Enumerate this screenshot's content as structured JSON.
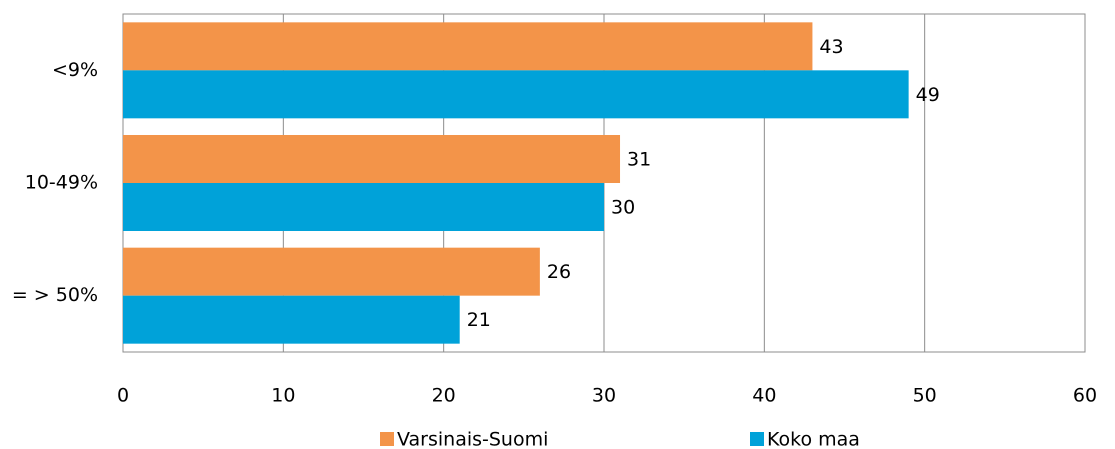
{
  "chart_data": {
    "type": "bar",
    "orientation": "horizontal",
    "categories": [
      "<9%",
      "10-49%",
      "= > 50%"
    ],
    "series": [
      {
        "name": "Varsinais-Suomi",
        "color": "#f39449",
        "values": [
          43,
          31,
          26
        ]
      },
      {
        "name": "Koko maa",
        "color": "#00a2d9",
        "values": [
          49,
          30,
          21
        ]
      }
    ],
    "xlim": [
      0,
      60
    ],
    "xticks": [
      0,
      10,
      20,
      30,
      40,
      50,
      60
    ],
    "grid": true,
    "legend": "bottom"
  }
}
